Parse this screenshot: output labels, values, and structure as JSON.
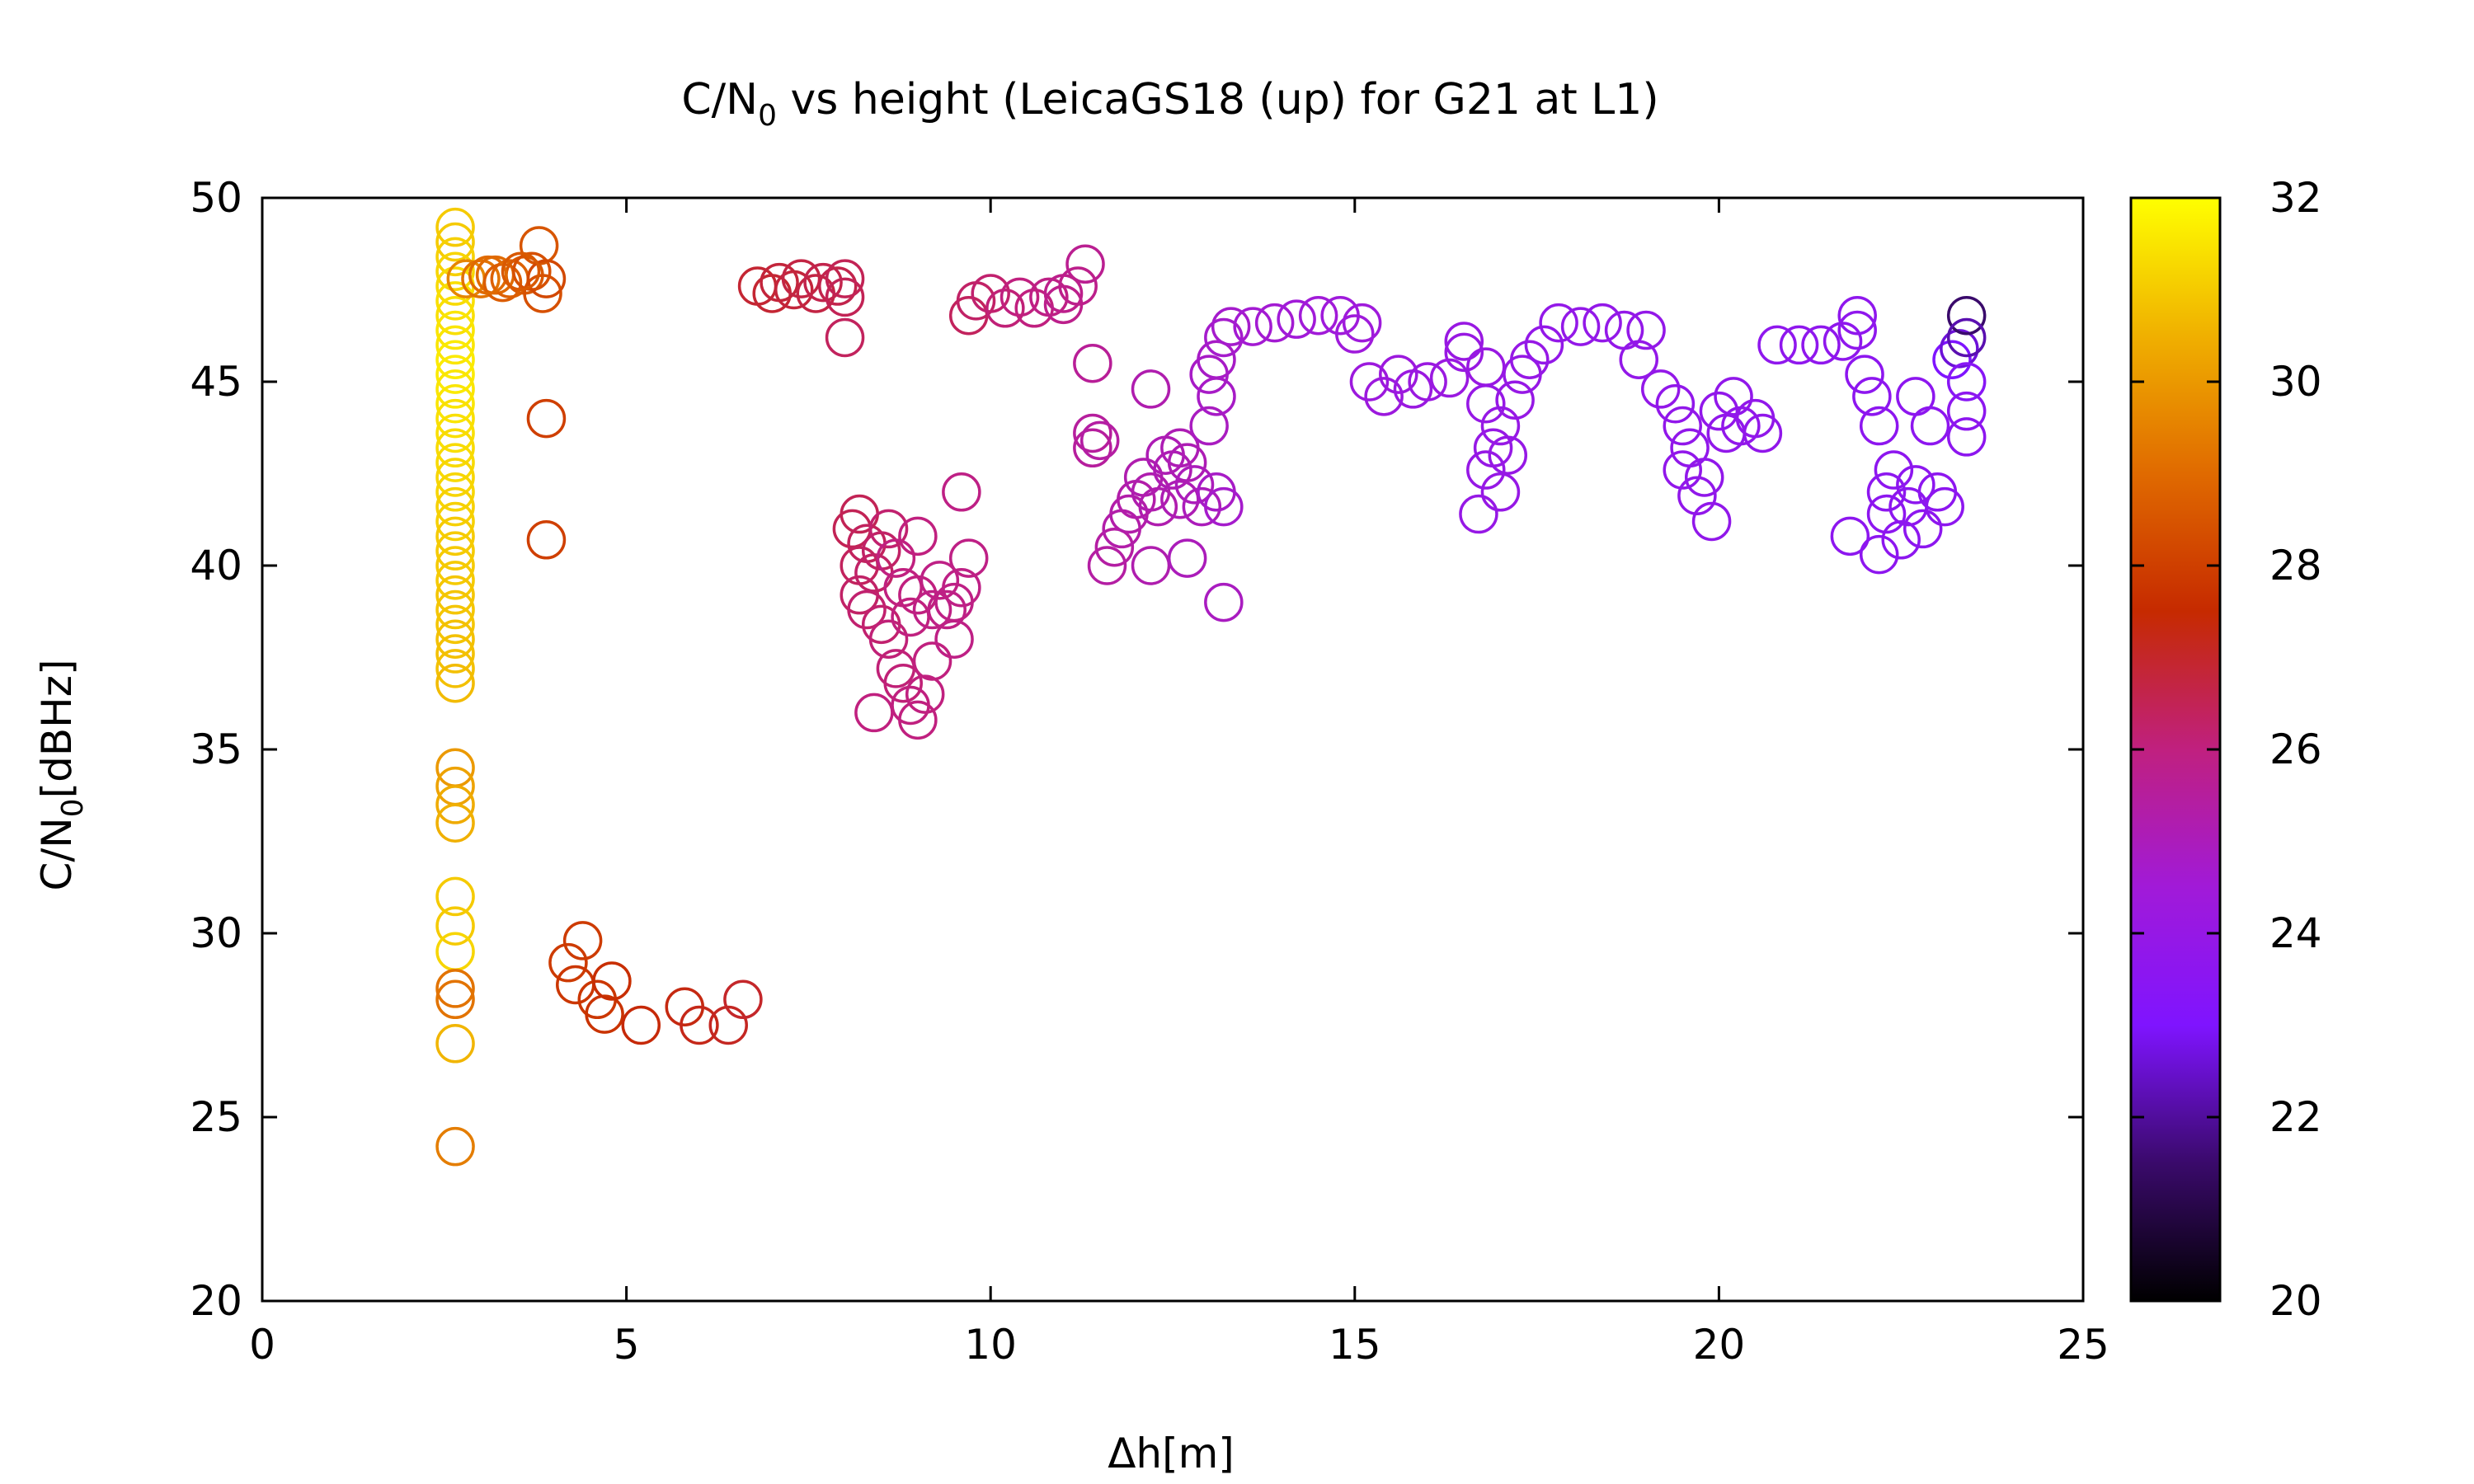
{
  "chart_data": {
    "type": "scatter",
    "title": {
      "main": "C/N",
      "sub": "0",
      "rest": " vs height (LeicaGS18 (up) for G21 at L1)"
    },
    "xlabel": "Δh[m]",
    "ylabel": {
      "main": "C/N",
      "sub": "0",
      "rest": "[dBHz]"
    },
    "xlim": [
      0,
      25
    ],
    "ylim": [
      20,
      50
    ],
    "x_ticks": [
      0,
      5,
      10,
      15,
      20,
      25
    ],
    "y_ticks": [
      20,
      25,
      30,
      35,
      40,
      45,
      50
    ],
    "colorbar": {
      "range": [
        20,
        32
      ],
      "ticks": [
        20,
        22,
        24,
        26,
        28,
        30,
        32
      ],
      "stops": [
        "#000000",
        "#3a0a6b",
        "#7f14ff",
        "#a11ad8",
        "#c0207f",
        "#c62a00",
        "#e06a00",
        "#f0b000",
        "#ffff00"
      ]
    },
    "marker": "open-circle",
    "points": [
      [
        2.65,
        49.2,
        31.0
      ],
      [
        2.65,
        48.8,
        31.0
      ],
      [
        2.65,
        48.4,
        31.1
      ],
      [
        2.65,
        48.0,
        31.2
      ],
      [
        2.65,
        47.6,
        31.3
      ],
      [
        2.65,
        47.2,
        31.4
      ],
      [
        2.65,
        46.8,
        31.4
      ],
      [
        2.65,
        46.4,
        31.5
      ],
      [
        2.65,
        46.0,
        31.5
      ],
      [
        2.65,
        45.6,
        31.6
      ],
      [
        2.65,
        45.2,
        31.6
      ],
      [
        2.65,
        44.8,
        31.5
      ],
      [
        2.65,
        44.4,
        31.5
      ],
      [
        2.65,
        44.0,
        31.4
      ],
      [
        2.65,
        43.6,
        31.4
      ],
      [
        2.65,
        43.2,
        31.3
      ],
      [
        2.65,
        42.8,
        31.3
      ],
      [
        2.65,
        42.4,
        31.2
      ],
      [
        2.65,
        42.0,
        31.2
      ],
      [
        2.65,
        41.6,
        31.1
      ],
      [
        2.65,
        41.2,
        31.1
      ],
      [
        2.65,
        40.8,
        31.0
      ],
      [
        2.65,
        40.4,
        31.0
      ],
      [
        2.65,
        40.0,
        31.0
      ],
      [
        2.65,
        39.6,
        31.0
      ],
      [
        2.65,
        39.2,
        30.9
      ],
      [
        2.65,
        38.8,
        30.9
      ],
      [
        2.65,
        38.4,
        30.9
      ],
      [
        2.65,
        38.0,
        30.8
      ],
      [
        2.65,
        37.6,
        30.8
      ],
      [
        2.65,
        37.2,
        30.8
      ],
      [
        2.65,
        36.8,
        30.7
      ],
      [
        2.65,
        34.5,
        30.0
      ],
      [
        2.65,
        34.0,
        30.2
      ],
      [
        2.65,
        33.5,
        30.4
      ],
      [
        2.65,
        33.0,
        30.5
      ],
      [
        2.65,
        31.0,
        31.0
      ],
      [
        2.65,
        30.2,
        31.0
      ],
      [
        2.65,
        29.5,
        31.2
      ],
      [
        2.65,
        28.5,
        29.2
      ],
      [
        2.65,
        28.2,
        29.2
      ],
      [
        2.65,
        27.0,
        30.6
      ],
      [
        2.65,
        24.2,
        29.4
      ],
      [
        2.8,
        47.8,
        29.6
      ],
      [
        3.0,
        47.8,
        29.2
      ],
      [
        3.2,
        47.9,
        29.0
      ],
      [
        3.4,
        47.8,
        28.8
      ],
      [
        3.6,
        47.9,
        28.6
      ],
      [
        3.3,
        47.7,
        28.7
      ],
      [
        3.1,
        47.9,
        29.0
      ],
      [
        3.7,
        48.0,
        28.4
      ],
      [
        3.8,
        48.7,
        28.5
      ],
      [
        3.85,
        47.4,
        28.4
      ],
      [
        3.9,
        47.8,
        28.2
      ],
      [
        3.55,
        48.0,
        28.6
      ],
      [
        3.9,
        44.0,
        28.0
      ],
      [
        3.9,
        40.7,
        28.0
      ],
      [
        4.2,
        29.2,
        27.9
      ],
      [
        4.4,
        29.8,
        27.9
      ],
      [
        4.3,
        28.6,
        27.8
      ],
      [
        4.6,
        28.2,
        27.8
      ],
      [
        4.7,
        27.8,
        27.7
      ],
      [
        4.8,
        28.7,
        27.6
      ],
      [
        5.2,
        27.5,
        27.4
      ],
      [
        5.8,
        28.0,
        27.3
      ],
      [
        6.0,
        27.5,
        27.2
      ],
      [
        6.4,
        27.5,
        27.1
      ],
      [
        6.6,
        28.2,
        27.0
      ],
      [
        6.8,
        47.6,
        26.9
      ],
      [
        7.0,
        47.4,
        26.9
      ],
      [
        7.1,
        47.7,
        26.8
      ],
      [
        7.3,
        47.5,
        26.8
      ],
      [
        7.4,
        47.8,
        26.7
      ],
      [
        7.6,
        47.4,
        26.7
      ],
      [
        7.7,
        47.7,
        26.6
      ],
      [
        7.9,
        47.6,
        26.6
      ],
      [
        8.0,
        47.8,
        26.5
      ],
      [
        8.0,
        47.3,
        26.5
      ],
      [
        8.0,
        46.2,
        26.4
      ],
      [
        8.1,
        41.0,
        26.5
      ],
      [
        8.2,
        41.4,
        26.5
      ],
      [
        8.2,
        40.0,
        26.4
      ],
      [
        8.3,
        40.6,
        26.4
      ],
      [
        8.2,
        39.2,
        26.3
      ],
      [
        8.4,
        39.8,
        26.3
      ],
      [
        8.5,
        40.4,
        26.3
      ],
      [
        8.6,
        41.0,
        26.2
      ],
      [
        8.3,
        38.8,
        26.2
      ],
      [
        8.5,
        38.4,
        26.2
      ],
      [
        8.6,
        38.0,
        26.1
      ],
      [
        8.7,
        37.2,
        26.1
      ],
      [
        8.8,
        36.8,
        26.1
      ],
      [
        8.9,
        36.2,
        26.0
      ],
      [
        8.4,
        36.0,
        26.0
      ],
      [
        8.9,
        38.6,
        26.0
      ],
      [
        9.0,
        39.2,
        26.0
      ],
      [
        9.0,
        40.8,
        26.0
      ],
      [
        9.1,
        36.5,
        26.0
      ],
      [
        9.2,
        37.4,
        26.0
      ],
      [
        9.3,
        39.6,
        25.9
      ],
      [
        9.4,
        38.8,
        25.9
      ],
      [
        9.5,
        39.0,
        25.9
      ],
      [
        9.6,
        39.4,
        25.9
      ],
      [
        9.7,
        40.2,
        25.9
      ],
      [
        9.6,
        42.0,
        25.9
      ],
      [
        9.5,
        38.0,
        25.9
      ],
      [
        9.2,
        38.8,
        25.9
      ],
      [
        8.7,
        40.2,
        26.0
      ],
      [
        8.8,
        39.4,
        26.0
      ],
      [
        9.0,
        35.8,
        26.0
      ],
      [
        9.7,
        46.8,
        26.4
      ],
      [
        9.8,
        47.2,
        26.3
      ],
      [
        10.0,
        47.4,
        26.2
      ],
      [
        10.2,
        47.0,
        26.1
      ],
      [
        10.4,
        47.3,
        26.0
      ],
      [
        10.6,
        47.0,
        26.0
      ],
      [
        10.8,
        47.3,
        25.9
      ],
      [
        11.0,
        47.1,
        25.8
      ],
      [
        11.2,
        47.6,
        25.8
      ],
      [
        11.3,
        48.2,
        25.7
      ],
      [
        11.0,
        47.4,
        25.8
      ],
      [
        11.4,
        45.5,
        25.6
      ],
      [
        11.4,
        43.6,
        25.5
      ],
      [
        11.4,
        43.2,
        25.5
      ],
      [
        11.5,
        43.4,
        25.4
      ],
      [
        11.6,
        40.0,
        25.4
      ],
      [
        11.7,
        40.5,
        25.4
      ],
      [
        11.8,
        41.0,
        25.3
      ],
      [
        11.9,
        41.4,
        25.3
      ],
      [
        12.0,
        41.8,
        25.3
      ],
      [
        12.1,
        42.4,
        25.2
      ],
      [
        12.2,
        42.0,
        25.2
      ],
      [
        12.3,
        41.6,
        25.2
      ],
      [
        12.2,
        40.0,
        25.2
      ],
      [
        12.2,
        44.8,
        25.2
      ],
      [
        12.4,
        43.0,
        25.1
      ],
      [
        12.5,
        42.6,
        25.1
      ],
      [
        12.6,
        43.2,
        25.1
      ],
      [
        12.7,
        42.8,
        25.1
      ],
      [
        12.6,
        41.8,
        25.1
      ],
      [
        12.8,
        42.2,
        25.0
      ],
      [
        12.9,
        41.6,
        25.0
      ],
      [
        12.7,
        40.2,
        25.0
      ],
      [
        13.2,
        39.0,
        24.9
      ],
      [
        13.0,
        43.8,
        24.9
      ],
      [
        13.1,
        44.6,
        24.8
      ],
      [
        13.0,
        45.2,
        24.8
      ],
      [
        13.1,
        45.6,
        24.8
      ],
      [
        13.2,
        46.2,
        24.7
      ],
      [
        13.1,
        42.0,
        24.8
      ],
      [
        13.2,
        41.6,
        24.7
      ],
      [
        13.3,
        46.5,
        24.7
      ],
      [
        13.6,
        46.5,
        24.6
      ],
      [
        13.9,
        46.6,
        24.6
      ],
      [
        14.2,
        46.7,
        24.5
      ],
      [
        14.5,
        46.8,
        24.5
      ],
      [
        14.8,
        46.8,
        24.4
      ],
      [
        15.1,
        46.6,
        24.4
      ],
      [
        15.0,
        46.3,
        24.4
      ],
      [
        15.2,
        45.0,
        24.3
      ],
      [
        15.4,
        44.6,
        24.3
      ],
      [
        15.6,
        45.2,
        24.3
      ],
      [
        15.8,
        44.8,
        24.2
      ],
      [
        16.0,
        45.0,
        24.2
      ],
      [
        16.3,
        45.1,
        24.2
      ],
      [
        16.5,
        45.8,
        24.1
      ],
      [
        16.5,
        46.1,
        24.1
      ],
      [
        16.8,
        45.4,
        24.1
      ],
      [
        16.8,
        44.4,
        24.0
      ],
      [
        16.9,
        43.2,
        24.0
      ],
      [
        16.8,
        42.6,
        24.0
      ],
      [
        16.7,
        41.4,
        24.0
      ],
      [
        17.0,
        42.0,
        24.0
      ],
      [
        17.1,
        43.0,
        24.0
      ],
      [
        17.0,
        43.8,
        24.0
      ],
      [
        17.2,
        44.5,
        24.0
      ],
      [
        17.3,
        45.2,
        24.0
      ],
      [
        17.4,
        45.6,
        24.0
      ],
      [
        17.6,
        46.0,
        23.9
      ],
      [
        17.8,
        46.6,
        23.9
      ],
      [
        18.1,
        46.5,
        23.9
      ],
      [
        18.4,
        46.6,
        23.9
      ],
      [
        18.7,
        46.4,
        23.9
      ],
      [
        19.0,
        46.4,
        23.9
      ],
      [
        18.9,
        45.6,
        23.9
      ],
      [
        19.2,
        44.8,
        23.9
      ],
      [
        19.4,
        44.4,
        23.8
      ],
      [
        19.5,
        43.8,
        23.8
      ],
      [
        19.5,
        42.6,
        23.8
      ],
      [
        19.6,
        43.2,
        23.8
      ],
      [
        19.7,
        41.9,
        23.8
      ],
      [
        19.8,
        42.4,
        23.8
      ],
      [
        19.9,
        41.2,
        23.8
      ],
      [
        20.0,
        44.2,
        23.8
      ],
      [
        20.1,
        43.6,
        23.8
      ],
      [
        20.2,
        44.6,
        23.8
      ],
      [
        20.3,
        43.8,
        23.8
      ],
      [
        20.5,
        44.0,
        23.8
      ],
      [
        20.6,
        43.6,
        23.8
      ],
      [
        20.8,
        46.0,
        23.7
      ],
      [
        21.1,
        46.0,
        23.7
      ],
      [
        21.4,
        46.0,
        23.7
      ],
      [
        21.7,
        46.1,
        23.7
      ],
      [
        21.9,
        46.4,
        23.7
      ],
      [
        21.9,
        46.8,
        23.7
      ],
      [
        21.8,
        40.8,
        23.6
      ],
      [
        22.0,
        45.2,
        23.6
      ],
      [
        22.1,
        44.6,
        23.6
      ],
      [
        22.2,
        43.8,
        23.6
      ],
      [
        22.3,
        42.0,
        23.6
      ],
      [
        22.2,
        40.3,
        23.6
      ],
      [
        22.3,
        41.4,
        23.6
      ],
      [
        22.4,
        42.6,
        23.6
      ],
      [
        22.5,
        40.7,
        23.6
      ],
      [
        22.6,
        41.6,
        23.6
      ],
      [
        22.7,
        42.2,
        23.6
      ],
      [
        22.7,
        44.6,
        23.6
      ],
      [
        22.8,
        41.0,
        23.6
      ],
      [
        22.9,
        43.8,
        23.6
      ],
      [
        23.0,
        42.0,
        23.6
      ],
      [
        23.1,
        41.6,
        23.6
      ],
      [
        23.2,
        45.6,
        23.0
      ],
      [
        23.3,
        45.9,
        22.6
      ],
      [
        23.4,
        46.8,
        21.5
      ],
      [
        23.4,
        46.2,
        22.2
      ],
      [
        23.4,
        44.2,
        23.6
      ],
      [
        23.4,
        43.5,
        23.6
      ],
      [
        23.4,
        45.0,
        23.4
      ]
    ]
  }
}
